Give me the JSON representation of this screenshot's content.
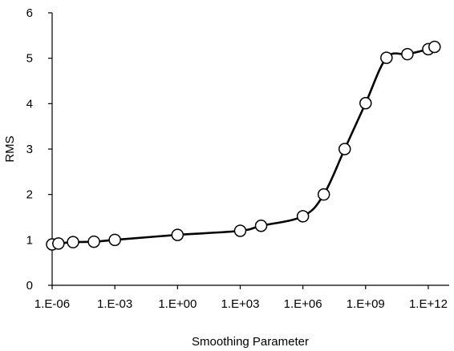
{
  "chart_data": {
    "type": "line",
    "title": "",
    "xlabel": "Smoothing Parameter",
    "ylabel": "RMS",
    "x_scale": "log",
    "xlim": [
      1e-06,
      10000000000000.0
    ],
    "ylim": [
      0,
      6
    ],
    "grid": false,
    "legend": "none",
    "x_ticks": [
      {
        "value": 1e-06,
        "label": "1.E-06"
      },
      {
        "value": 0.001,
        "label": "1.E-03"
      },
      {
        "value": 1,
        "label": "1.E+00"
      },
      {
        "value": 1000.0,
        "label": "1.E+03"
      },
      {
        "value": 1000000.0,
        "label": "1.E+06"
      },
      {
        "value": 1000000000.0,
        "label": "1.E+09"
      },
      {
        "value": 1000000000000.0,
        "label": "1.E+12"
      }
    ],
    "y_ticks": [
      0,
      1,
      2,
      3,
      4,
      5,
      6
    ],
    "series": [
      {
        "color": "#000000",
        "marker": "open-circle",
        "x": [
          1e-06,
          2e-06,
          1e-05,
          0.0001,
          0.001,
          1,
          1000.0,
          10000.0,
          1000000.0,
          10000000.0,
          100000000.0,
          1000000000.0,
          10000000000.0,
          100000000000.0,
          1000000000000.0,
          2000000000000.0
        ],
        "y": [
          0.9,
          0.92,
          0.95,
          0.96,
          1.0,
          1.11,
          1.2,
          1.31,
          1.52,
          2.0,
          3.0,
          4.01,
          5.01,
          5.09,
          5.2,
          5.25
        ]
      }
    ]
  }
}
